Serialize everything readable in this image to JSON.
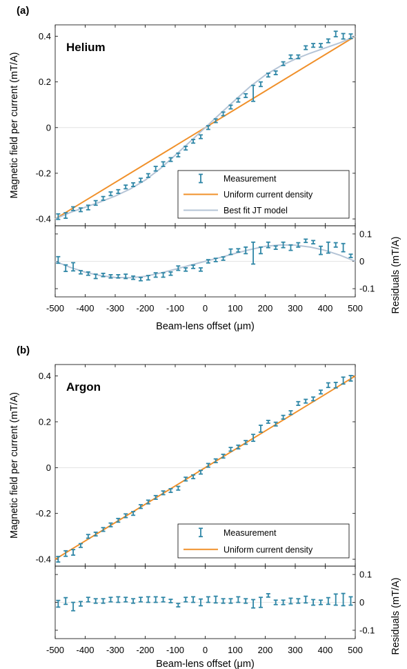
{
  "colors": {
    "measurement": "#2e86a6",
    "uniform": "#f0902a",
    "jt": "#b4c4d6",
    "zero_line": "#dddddd",
    "axes": "#000000"
  },
  "chart_data": [
    {
      "type": "scatter",
      "panel_label": "(a)",
      "species_label": "Helium",
      "xlabel": "Beam-lens offset (μm)",
      "ylabel_main": "Magnetic field per current (mT/A)",
      "ylabel_resid": "Residuals (mT/A)",
      "xlim": [
        -500,
        500
      ],
      "ylim_main": [
        -0.43,
        0.45
      ],
      "ylim_resid": [
        -0.13,
        0.13
      ],
      "xticks": [
        -500,
        -400,
        -300,
        -200,
        -100,
        0,
        100,
        200,
        300,
        400,
        500
      ],
      "xtick_labels": [
        "-500",
        "-400",
        "-300",
        "-200",
        "-100",
        "0",
        "100",
        "200",
        "300",
        "400",
        "500"
      ],
      "yticks_main": [
        -0.4,
        -0.2,
        0,
        0.2,
        0.4
      ],
      "ytick_main_labels": [
        "-0.4",
        "-0.2",
        "0",
        "0.2",
        "0.4"
      ],
      "yticks_resid": [
        -0.1,
        0,
        0.1
      ],
      "ytick_resid_labels": [
        "-0.1",
        "0",
        "0.1"
      ],
      "legend": [
        "Measurement",
        "Uniform current density",
        "Best fit JT model"
      ],
      "legend_position": "bottom-right",
      "series": [
        {
          "name": "Measurement",
          "kind": "errorbar",
          "x": [
            -490,
            -465,
            -440,
            -415,
            -390,
            -365,
            -340,
            -315,
            -290,
            -265,
            -240,
            -215,
            -190,
            -165,
            -140,
            -115,
            -90,
            -65,
            -40,
            -15,
            10,
            35,
            60,
            85,
            110,
            135,
            160,
            185,
            210,
            235,
            260,
            285,
            310,
            335,
            360,
            385,
            410,
            435,
            460,
            485
          ],
          "y": [
            -0.39,
            -0.385,
            -0.355,
            -0.36,
            -0.35,
            -0.33,
            -0.31,
            -0.29,
            -0.28,
            -0.26,
            -0.25,
            -0.23,
            -0.21,
            -0.18,
            -0.16,
            -0.14,
            -0.12,
            -0.09,
            -0.06,
            -0.04,
            0.0,
            0.03,
            0.06,
            0.09,
            0.12,
            0.14,
            0.15,
            0.19,
            0.23,
            0.24,
            0.28,
            0.31,
            0.31,
            0.35,
            0.36,
            0.36,
            0.38,
            0.41,
            0.4,
            0.4
          ],
          "err": [
            0.012,
            0.012,
            0.008,
            0.008,
            0.01,
            0.01,
            0.008,
            0.008,
            0.008,
            0.008,
            0.008,
            0.008,
            0.008,
            0.01,
            0.01,
            0.008,
            0.008,
            0.008,
            0.008,
            0.008,
            0.008,
            0.008,
            0.008,
            0.008,
            0.008,
            0.008,
            0.035,
            0.01,
            0.008,
            0.008,
            0.008,
            0.008,
            0.008,
            0.008,
            0.008,
            0.008,
            0.008,
            0.012,
            0.012,
            0.01
          ]
        },
        {
          "name": "Uniform current density",
          "kind": "line",
          "x": [
            -500,
            500
          ],
          "y": [
            -0.4,
            0.4
          ]
        },
        {
          "name": "Best fit JT model",
          "kind": "curve",
          "x": [
            -500,
            -450,
            -400,
            -350,
            -300,
            -250,
            -200,
            -150,
            -100,
            -50,
            0,
            50,
            100,
            150,
            200,
            250,
            300,
            350,
            400,
            450,
            500
          ],
          "y": [
            -0.4,
            -0.372,
            -0.349,
            -0.326,
            -0.3,
            -0.269,
            -0.23,
            -0.18,
            -0.121,
            -0.061,
            0.0,
            0.061,
            0.121,
            0.18,
            0.23,
            0.269,
            0.3,
            0.326,
            0.349,
            0.372,
            0.4
          ]
        },
        {
          "name": "Residuals",
          "kind": "errorbar",
          "x": [
            -490,
            -465,
            -440,
            -415,
            -390,
            -365,
            -340,
            -315,
            -290,
            -265,
            -240,
            -215,
            -190,
            -165,
            -140,
            -115,
            -90,
            -65,
            -40,
            -15,
            10,
            35,
            60,
            85,
            110,
            135,
            160,
            185,
            210,
            235,
            260,
            285,
            310,
            335,
            360,
            385,
            410,
            435,
            460,
            485
          ],
          "y": [
            0.005,
            -0.025,
            -0.02,
            -0.04,
            -0.045,
            -0.055,
            -0.05,
            -0.055,
            -0.055,
            -0.055,
            -0.06,
            -0.065,
            -0.06,
            -0.05,
            -0.05,
            -0.045,
            -0.025,
            -0.03,
            -0.02,
            -0.03,
            0.0,
            0.005,
            0.01,
            0.035,
            0.04,
            0.04,
            0.03,
            0.04,
            0.06,
            0.05,
            0.06,
            0.05,
            0.06,
            0.075,
            0.07,
            0.04,
            0.05,
            0.06,
            0.05,
            0.02
          ],
          "err": [
            0.012,
            0.012,
            0.015,
            0.006,
            0.006,
            0.008,
            0.006,
            0.006,
            0.006,
            0.008,
            0.006,
            0.006,
            0.008,
            0.008,
            0.008,
            0.006,
            0.008,
            0.006,
            0.006,
            0.006,
            0.006,
            0.006,
            0.006,
            0.01,
            0.006,
            0.012,
            0.04,
            0.012,
            0.01,
            0.006,
            0.01,
            0.01,
            0.008,
            0.006,
            0.006,
            0.015,
            0.02,
            0.008,
            0.015,
            0.006
          ]
        },
        {
          "name": "JT residual",
          "kind": "curve",
          "x": [
            -500,
            -450,
            -400,
            -350,
            -300,
            -250,
            -200,
            -150,
            -100,
            -50,
            0,
            50,
            100,
            150,
            200,
            250,
            300,
            350,
            400,
            450,
            500
          ],
          "y": [
            0.0,
            -0.022,
            -0.04,
            -0.052,
            -0.059,
            -0.06,
            -0.055,
            -0.043,
            -0.029,
            -0.014,
            0.0,
            0.014,
            0.029,
            0.043,
            0.055,
            0.06,
            0.059,
            0.052,
            0.04,
            0.022,
            0.0
          ]
        }
      ]
    },
    {
      "type": "scatter",
      "panel_label": "(b)",
      "species_label": "Argon",
      "xlabel": "Beam-lens offset (μm)",
      "ylabel_main": "Magnetic field per current (mT/A)",
      "ylabel_resid": "Residuals (mT/A)",
      "xlim": [
        -500,
        500
      ],
      "ylim_main": [
        -0.43,
        0.45
      ],
      "ylim_resid": [
        -0.13,
        0.13
      ],
      "xticks": [
        -500,
        -400,
        -300,
        -200,
        -100,
        0,
        100,
        200,
        300,
        400,
        500
      ],
      "xtick_labels": [
        "-500",
        "-400",
        "-300",
        "-200",
        "-100",
        "0",
        "100",
        "200",
        "300",
        "400",
        "500"
      ],
      "yticks_main": [
        -0.4,
        -0.2,
        0,
        0.2,
        0.4
      ],
      "ytick_main_labels": [
        "-0.4",
        "-0.2",
        "0",
        "0.2",
        "0.4"
      ],
      "yticks_resid": [
        -0.1,
        0,
        0.1
      ],
      "ytick_resid_labels": [
        "-0.1",
        "0",
        "0.1"
      ],
      "legend": [
        "Measurement",
        "Uniform current density"
      ],
      "legend_position": "bottom-right",
      "series": [
        {
          "name": "Measurement",
          "kind": "errorbar",
          "x": [
            -490,
            -465,
            -440,
            -415,
            -390,
            -365,
            -340,
            -315,
            -290,
            -265,
            -240,
            -215,
            -190,
            -165,
            -140,
            -115,
            -90,
            -65,
            -40,
            -15,
            10,
            35,
            60,
            85,
            110,
            135,
            160,
            185,
            210,
            235,
            260,
            285,
            310,
            335,
            360,
            385,
            410,
            435,
            460,
            485
          ],
          "y": [
            -0.4,
            -0.375,
            -0.37,
            -0.34,
            -0.3,
            -0.29,
            -0.27,
            -0.25,
            -0.23,
            -0.21,
            -0.2,
            -0.17,
            -0.15,
            -0.13,
            -0.11,
            -0.1,
            -0.09,
            -0.05,
            -0.04,
            -0.02,
            0.01,
            0.03,
            0.05,
            0.08,
            0.09,
            0.11,
            0.13,
            0.17,
            0.2,
            0.19,
            0.22,
            0.24,
            0.28,
            0.29,
            0.3,
            0.33,
            0.36,
            0.36,
            0.38,
            0.39
          ],
          "err": [
            0.012,
            0.012,
            0.012,
            0.008,
            0.008,
            0.008,
            0.008,
            0.008,
            0.008,
            0.008,
            0.008,
            0.008,
            0.008,
            0.008,
            0.008,
            0.008,
            0.008,
            0.008,
            0.008,
            0.008,
            0.008,
            0.008,
            0.008,
            0.008,
            0.008,
            0.008,
            0.015,
            0.015,
            0.006,
            0.008,
            0.008,
            0.008,
            0.008,
            0.008,
            0.008,
            0.008,
            0.01,
            0.012,
            0.015,
            0.012
          ]
        },
        {
          "name": "Uniform current density",
          "kind": "line",
          "x": [
            -500,
            500
          ],
          "y": [
            -0.4,
            0.4
          ]
        },
        {
          "name": "Residuals",
          "kind": "errorbar",
          "x": [
            -490,
            -465,
            -440,
            -415,
            -390,
            -365,
            -340,
            -315,
            -290,
            -265,
            -240,
            -215,
            -190,
            -165,
            -140,
            -115,
            -90,
            -65,
            -40,
            -15,
            10,
            35,
            60,
            85,
            110,
            135,
            160,
            185,
            210,
            235,
            260,
            285,
            310,
            335,
            360,
            385,
            410,
            435,
            460,
            485
          ],
          "y": [
            -0.005,
            0.005,
            -0.015,
            -0.005,
            0.01,
            0.005,
            0.005,
            0.01,
            0.01,
            0.01,
            0.005,
            0.01,
            0.01,
            0.01,
            0.01,
            0.005,
            -0.01,
            0.01,
            0.01,
            0.0,
            0.01,
            0.01,
            0.005,
            0.005,
            0.01,
            0.005,
            -0.005,
            0.0,
            0.025,
            0.0,
            0.0,
            0.005,
            0.005,
            0.01,
            0.0,
            0.0,
            0.005,
            0.01,
            0.01,
            0.005
          ],
          "err": [
            0.012,
            0.012,
            0.015,
            0.008,
            0.008,
            0.008,
            0.008,
            0.008,
            0.01,
            0.008,
            0.008,
            0.008,
            0.01,
            0.01,
            0.008,
            0.006,
            0.006,
            0.008,
            0.01,
            0.012,
            0.01,
            0.012,
            0.008,
            0.008,
            0.01,
            0.008,
            0.015,
            0.018,
            0.006,
            0.008,
            0.008,
            0.01,
            0.008,
            0.012,
            0.01,
            0.008,
            0.012,
            0.02,
            0.022,
            0.015
          ]
        }
      ]
    }
  ]
}
